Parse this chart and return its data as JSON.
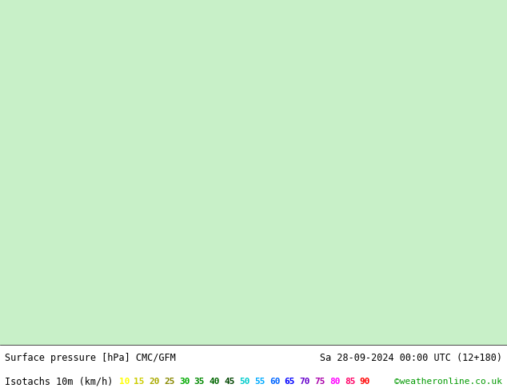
{
  "title_left": "Surface pressure [hPa] CMC/GFM",
  "title_right": "Sa 28-09-2024 00:00 UTC (12+180)",
  "legend_label": "Isotachs 10m (km/h)",
  "watermark": "©weatheronline.co.uk",
  "isotach_values": [
    10,
    15,
    20,
    25,
    30,
    35,
    40,
    45,
    50,
    55,
    60,
    65,
    70,
    75,
    80,
    85,
    90
  ],
  "isotach_colors": [
    "#ffff00",
    "#ffe000",
    "#ffc000",
    "#ffa000",
    "#ff8000",
    "#ff6000",
    "#ff4000",
    "#ff2000",
    "#ff00ff",
    "#cc00ff",
    "#9900ff",
    "#6600ff",
    "#0000ff",
    "#0055ff",
    "#00aaff",
    "#00ffff",
    "#00ff80"
  ],
  "bg_color": "#c8f0c8",
  "map_bg": "#c8f0c8",
  "bottom_bar_color": "#ffffff",
  "bottom_text_color": "#000000",
  "fig_width": 6.34,
  "fig_height": 4.9,
  "dpi": 100
}
